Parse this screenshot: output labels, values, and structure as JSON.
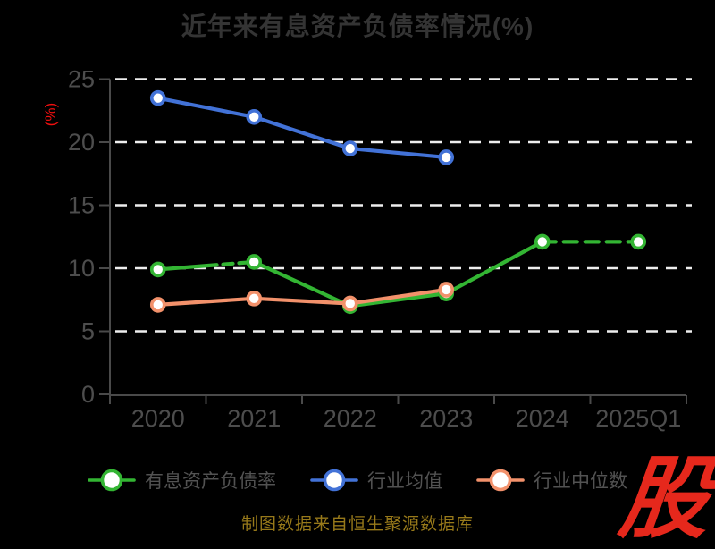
{
  "title": "近年来有息资产负债率情况(%)",
  "y_axis_label": "(%)",
  "source_note": "制图数据来自恒生聚源数据库",
  "logo_text": "股",
  "colors": {
    "background": "#000000",
    "title": "#343434",
    "axis": "#4a4a4a",
    "tick_label": "#4d4d4d",
    "gridline": "#eeeeee",
    "y_axis_label": "#ef0f0f",
    "legend_text": "#525252",
    "source_note": "#97791a",
    "logo": "#e6281c",
    "series_green": "#33b533",
    "series_blue": "#4272d7",
    "series_orange": "#f2916b"
  },
  "chart_data": {
    "type": "line",
    "title": "近年来有息资产负债率情况(%)",
    "xlabel": "",
    "ylabel": "(%)",
    "categories": [
      "2020",
      "2021",
      "2022",
      "2023",
      "2024",
      "2025Q1"
    ],
    "series": [
      {
        "name": "有息资产负债率",
        "color_key": "series_green",
        "values": [
          9.9,
          10.5,
          7.0,
          8.0,
          12.1,
          12.1
        ]
      },
      {
        "name": "行业均值",
        "color_key": "series_blue",
        "values": [
          23.5,
          22.0,
          19.5,
          18.8,
          null,
          null
        ]
      },
      {
        "name": "行业中位数",
        "color_key": "series_orange",
        "values": [
          7.1,
          7.6,
          7.2,
          8.3,
          null,
          null
        ]
      }
    ],
    "yticks": [
      0,
      5,
      10,
      15,
      20,
      25
    ],
    "ylim": [
      0,
      25
    ],
    "grid": "dashed-horizontal-white",
    "legend_position": "bottom"
  }
}
